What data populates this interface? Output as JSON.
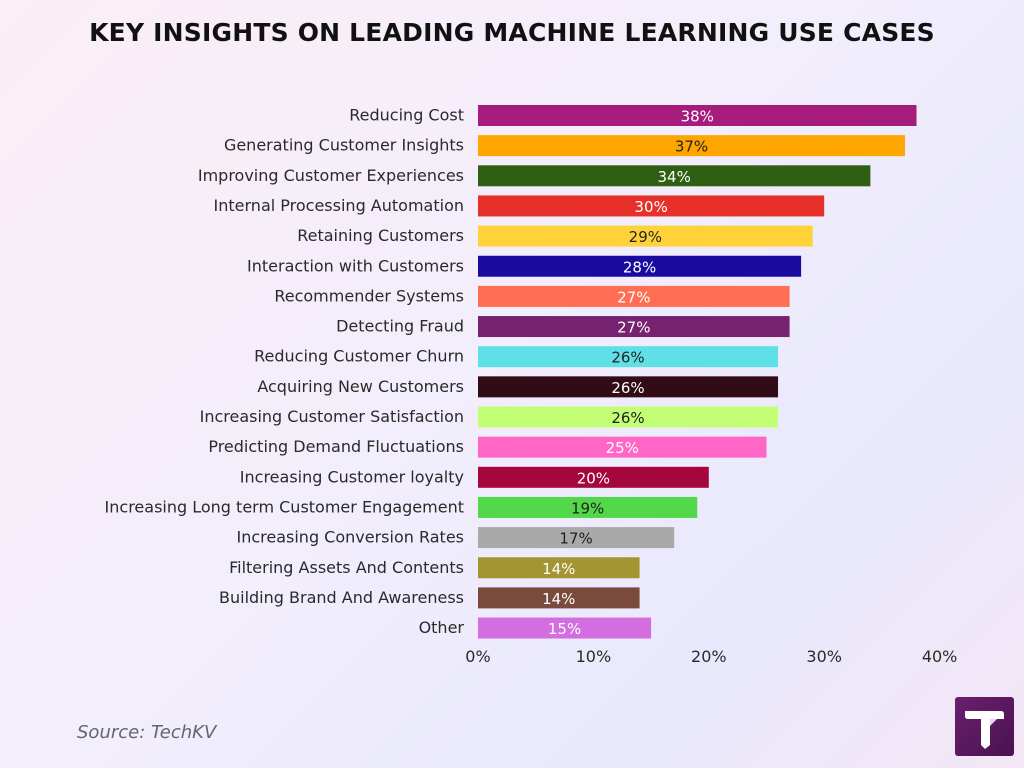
{
  "chart_data": {
    "type": "bar",
    "orientation": "horizontal",
    "title": "KEY INSIGHTS ON LEADING MACHINE LEARNING USE CASES",
    "categories": [
      "Reducing Cost",
      "Generating Customer Insights",
      "Improving Customer Experiences",
      "Internal Processing Automation",
      "Retaining Customers",
      "Interaction with Customers",
      "Recommender Systems",
      "Detecting Fraud",
      "Reducing Customer Churn",
      "Acquiring New Customers",
      "Increasing Customer Satisfaction",
      "Predicting Demand Fluctuations",
      "Increasing Customer loyalty",
      "Increasing Long term Customer Engagement",
      "Increasing Conversion Rates",
      "Filtering Assets And Contents",
      "Building Brand And Awareness",
      "Other"
    ],
    "values": [
      38,
      37,
      34,
      30,
      29,
      28,
      27,
      27,
      26,
      26,
      26,
      25,
      20,
      19,
      17,
      14,
      14,
      15
    ],
    "data_labels": [
      "38%",
      "37%",
      "34%",
      "30%",
      "29%",
      "28%",
      "27%",
      "27%",
      "26%",
      "26%",
      "26%",
      "25%",
      "20%",
      "19%",
      "17%",
      "14%",
      "14%",
      "15%"
    ],
    "colors": [
      "#a61c7c",
      "#ffa500",
      "#2f5f12",
      "#e8302a",
      "#ffd23a",
      "#1a0aa0",
      "#ff6e52",
      "#772270",
      "#5ee0e6",
      "#310c17",
      "#c2ff75",
      "#ff66c6",
      "#a5063b",
      "#52d84a",
      "#a9a9a9",
      "#a39531",
      "#7a4a3c",
      "#d46ee0"
    ],
    "label_colors": [
      "#ffffff",
      "#222222",
      "#ffffff",
      "#ffffff",
      "#222222",
      "#ffffff",
      "#ffffff",
      "#ffffff",
      "#222222",
      "#ffffff",
      "#222222",
      "#ffffff",
      "#ffffff",
      "#222222",
      "#222222",
      "#ffffff",
      "#ffffff",
      "#ffffff"
    ],
    "xticks": [
      "0%",
      "10%",
      "20%",
      "30%",
      "40%"
    ],
    "xlim": [
      0,
      40
    ],
    "grid": false,
    "legend": "none"
  },
  "source": "Source: TechKV",
  "logo_icon": "techkv-logo-icon"
}
